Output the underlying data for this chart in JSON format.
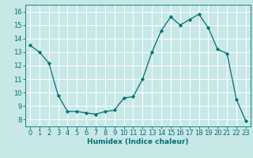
{
  "x": [
    0,
    1,
    2,
    3,
    4,
    5,
    6,
    7,
    8,
    9,
    10,
    11,
    12,
    13,
    14,
    15,
    16,
    17,
    18,
    19,
    20,
    21,
    22,
    23
  ],
  "y": [
    13.5,
    13.0,
    12.2,
    9.8,
    8.6,
    8.6,
    8.5,
    8.4,
    8.6,
    8.7,
    9.6,
    9.7,
    11.0,
    13.0,
    14.6,
    15.6,
    15.0,
    15.4,
    15.8,
    14.8,
    13.2,
    12.9,
    9.5,
    7.9
  ],
  "line_color": "#007070",
  "marker": "D",
  "marker_size": 2.2,
  "bg_color": "#c8e8e8",
  "grid_color": "#ffffff",
  "tick_color": "#007070",
  "label_color": "#007070",
  "xlabel": "Humidex (Indice chaleur)",
  "xlim": [
    -0.5,
    23.5
  ],
  "ylim": [
    7.5,
    16.5
  ],
  "yticks": [
    8,
    9,
    10,
    11,
    12,
    13,
    14,
    15,
    16
  ],
  "xticks": [
    0,
    1,
    2,
    3,
    4,
    5,
    6,
    7,
    8,
    9,
    10,
    11,
    12,
    13,
    14,
    15,
    16,
    17,
    18,
    19,
    20,
    21,
    22,
    23
  ],
  "xlabel_fontsize": 6.5,
  "tick_fontsize": 6.0
}
